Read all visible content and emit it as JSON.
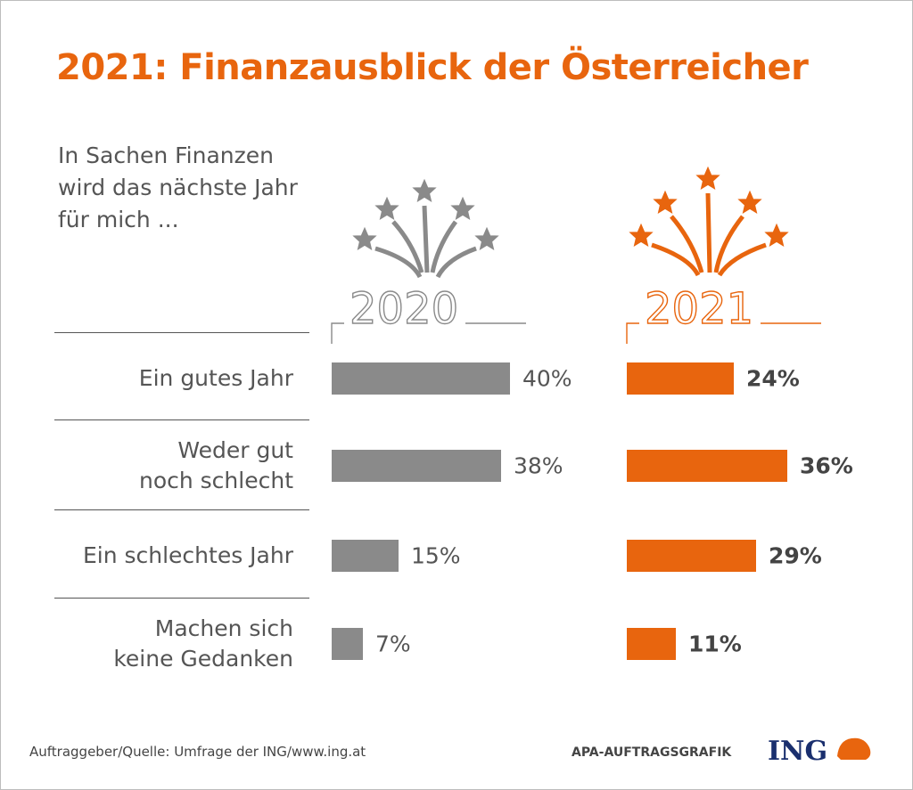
{
  "chart_data": {
    "type": "bar",
    "title": "2021: Finanzausblick der Österreicher",
    "subtitle": [
      "In Sachen Finanzen",
      "wird das nächste Jahr",
      "für mich ..."
    ],
    "categories": [
      "Ein gutes Jahr",
      "Weder gut\nnoch schlecht",
      "Ein schlechtes Jahr",
      "Machen sich\nkeine Gedanken"
    ],
    "series": [
      {
        "name": "2020",
        "color": "#8a8a8a",
        "values": [
          40,
          38,
          15,
          7
        ],
        "value_labels": [
          "40%",
          "38%",
          "15%",
          "7%"
        ]
      },
      {
        "name": "2021",
        "color": "#e8650e",
        "values": [
          24,
          36,
          29,
          11
        ],
        "value_labels": [
          "24%",
          "36%",
          "29%",
          "11%"
        ]
      }
    ],
    "source": "Auftraggeber/Quelle: Umfrage der ING/www.ing.at",
    "credit": "APA-AUFTRAGSGRAFIK",
    "logo": "ING"
  }
}
